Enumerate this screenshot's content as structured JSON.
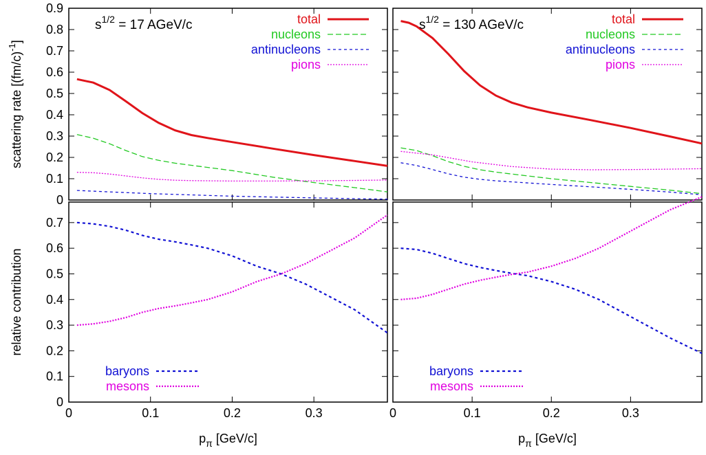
{
  "colors": {
    "total": "#e0141a",
    "nucleons": "#22c922",
    "antinucleons": "#1111d4",
    "pions": "#e000e0",
    "baryons": "#1111d4",
    "mesons": "#e000e0"
  },
  "chart_data": [
    {
      "panel": "top-left",
      "type": "line",
      "annotation": {
        "base": "s",
        "sup": "1/2",
        "rest": " = 17 AGeV/c"
      },
      "ylabel": "scattering rate [(fm/c)",
      "ylabel_sup": "-1",
      "ylabel_end": "]",
      "xlim": [
        0,
        0.39
      ],
      "ylim": [
        0,
        0.9
      ],
      "yticks": [
        "0",
        "0.1",
        "0.2",
        "0.3",
        "0.4",
        "0.5",
        "0.6",
        "0.7",
        "0.8",
        "0.9"
      ],
      "xticks": [],
      "grid": false,
      "legend_position": "top-right",
      "series": [
        {
          "name": "total",
          "x": [
            0.01,
            0.03,
            0.05,
            0.07,
            0.09,
            0.11,
            0.13,
            0.15,
            0.17,
            0.2,
            0.25,
            0.3,
            0.35,
            0.39
          ],
          "y": [
            0.567,
            0.551,
            0.516,
            0.463,
            0.408,
            0.362,
            0.327,
            0.305,
            0.291,
            0.272,
            0.241,
            0.211,
            0.183,
            0.16
          ]
        },
        {
          "name": "nucleons",
          "x": [
            0.01,
            0.03,
            0.05,
            0.07,
            0.09,
            0.11,
            0.13,
            0.15,
            0.2,
            0.25,
            0.3,
            0.35,
            0.39
          ],
          "y": [
            0.307,
            0.29,
            0.264,
            0.232,
            0.204,
            0.186,
            0.173,
            0.163,
            0.138,
            0.107,
            0.082,
            0.058,
            0.038
          ]
        },
        {
          "name": "antinucleons",
          "x": [
            0.01,
            0.05,
            0.1,
            0.15,
            0.2,
            0.25,
            0.3,
            0.35,
            0.39
          ],
          "y": [
            0.045,
            0.038,
            0.03,
            0.024,
            0.018,
            0.014,
            0.01,
            0.006,
            0.004
          ]
        },
        {
          "name": "pions",
          "x": [
            0.01,
            0.03,
            0.05,
            0.07,
            0.09,
            0.11,
            0.13,
            0.15,
            0.2,
            0.25,
            0.3,
            0.35,
            0.39
          ],
          "y": [
            0.13,
            0.128,
            0.122,
            0.113,
            0.104,
            0.097,
            0.093,
            0.091,
            0.089,
            0.089,
            0.09,
            0.092,
            0.094
          ]
        }
      ]
    },
    {
      "panel": "top-right",
      "type": "line",
      "annotation": {
        "base": "s",
        "sup": "1/2",
        "rest": " = 130 AGeV/c"
      },
      "xlim": [
        0,
        0.39
      ],
      "ylim": [
        0,
        0.9
      ],
      "yticks": [],
      "xticks": [],
      "grid": false,
      "legend_position": "top-right",
      "series": [
        {
          "name": "total",
          "x": [
            0.01,
            0.02,
            0.03,
            0.05,
            0.07,
            0.09,
            0.11,
            0.13,
            0.15,
            0.17,
            0.2,
            0.25,
            0.3,
            0.35,
            0.39
          ],
          "y": [
            0.84,
            0.832,
            0.815,
            0.76,
            0.685,
            0.605,
            0.538,
            0.49,
            0.457,
            0.435,
            0.41,
            0.375,
            0.338,
            0.298,
            0.265
          ]
        },
        {
          "name": "nucleons",
          "x": [
            0.01,
            0.03,
            0.05,
            0.07,
            0.09,
            0.11,
            0.13,
            0.15,
            0.2,
            0.25,
            0.3,
            0.35,
            0.39
          ],
          "y": [
            0.245,
            0.232,
            0.208,
            0.18,
            0.158,
            0.142,
            0.131,
            0.122,
            0.1,
            0.082,
            0.064,
            0.046,
            0.03
          ]
        },
        {
          "name": "antinucleons",
          "x": [
            0.01,
            0.03,
            0.05,
            0.07,
            0.09,
            0.11,
            0.13,
            0.15,
            0.2,
            0.25,
            0.3,
            0.35,
            0.39
          ],
          "y": [
            0.175,
            0.162,
            0.143,
            0.123,
            0.107,
            0.097,
            0.09,
            0.085,
            0.073,
            0.062,
            0.05,
            0.037,
            0.025
          ]
        },
        {
          "name": "pions",
          "x": [
            0.01,
            0.05,
            0.1,
            0.15,
            0.2,
            0.25,
            0.3,
            0.35,
            0.39
          ],
          "y": [
            0.228,
            0.212,
            0.179,
            0.157,
            0.145,
            0.142,
            0.143,
            0.145,
            0.147
          ]
        }
      ]
    },
    {
      "panel": "bottom-left",
      "type": "line",
      "ylabel": "relative contribution",
      "xlabel_base": "p",
      "xlabel_sub": "π",
      "xlabel_rest": " [GeV/c]",
      "xlim": [
        0,
        0.39
      ],
      "ylim": [
        0,
        0.78
      ],
      "yticks": [
        "0",
        "0.1",
        "0.2",
        "0.3",
        "0.4",
        "0.5",
        "0.6",
        "0.7"
      ],
      "xticks": [
        "0",
        "0.1",
        "0.2",
        "0.3"
      ],
      "grid": false,
      "legend_position": "bottom-left",
      "series": [
        {
          "name": "baryons",
          "x": [
            0.01,
            0.03,
            0.05,
            0.07,
            0.09,
            0.11,
            0.13,
            0.15,
            0.17,
            0.2,
            0.23,
            0.26,
            0.29,
            0.32,
            0.35,
            0.39
          ],
          "y": [
            0.7,
            0.695,
            0.685,
            0.67,
            0.65,
            0.635,
            0.625,
            0.613,
            0.6,
            0.57,
            0.53,
            0.5,
            0.46,
            0.41,
            0.36,
            0.27
          ]
        },
        {
          "name": "mesons",
          "x": [
            0.01,
            0.03,
            0.05,
            0.07,
            0.09,
            0.11,
            0.13,
            0.15,
            0.17,
            0.2,
            0.23,
            0.26,
            0.29,
            0.32,
            0.35,
            0.39
          ],
          "y": [
            0.3,
            0.305,
            0.315,
            0.33,
            0.35,
            0.365,
            0.375,
            0.387,
            0.4,
            0.43,
            0.47,
            0.5,
            0.54,
            0.59,
            0.64,
            0.73
          ]
        }
      ]
    },
    {
      "panel": "bottom-right",
      "type": "line",
      "xlabel_base": "p",
      "xlabel_sub": "π",
      "xlabel_rest": " [GeV/c]",
      "xlim": [
        0,
        0.39
      ],
      "ylim": [
        0,
        0.78
      ],
      "yticks": [],
      "xticks": [
        "0",
        "0.1",
        "0.2",
        "0.3"
      ],
      "grid": false,
      "legend_position": "bottom-left",
      "series": [
        {
          "name": "baryons",
          "x": [
            0.01,
            0.03,
            0.05,
            0.07,
            0.09,
            0.11,
            0.13,
            0.15,
            0.17,
            0.2,
            0.23,
            0.26,
            0.29,
            0.32,
            0.35,
            0.39
          ],
          "y": [
            0.6,
            0.595,
            0.58,
            0.56,
            0.54,
            0.525,
            0.513,
            0.502,
            0.493,
            0.47,
            0.44,
            0.4,
            0.35,
            0.3,
            0.25,
            0.19
          ]
        },
        {
          "name": "mesons",
          "x": [
            0.01,
            0.03,
            0.05,
            0.07,
            0.09,
            0.11,
            0.13,
            0.15,
            0.17,
            0.2,
            0.23,
            0.26,
            0.29,
            0.32,
            0.35,
            0.39
          ],
          "y": [
            0.4,
            0.405,
            0.42,
            0.44,
            0.46,
            0.475,
            0.487,
            0.498,
            0.507,
            0.53,
            0.56,
            0.6,
            0.65,
            0.7,
            0.75,
            0.8
          ]
        }
      ]
    }
  ]
}
